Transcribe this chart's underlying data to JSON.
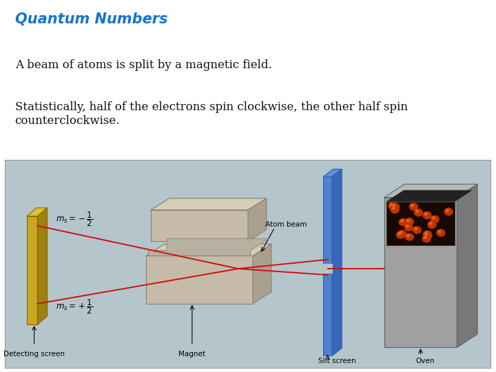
{
  "title": "Quantum Numbers",
  "title_color": "#1874CD",
  "title_fontsize": 15,
  "title_style": "italic",
  "title_weight": "bold",
  "body_text_1": "A beam of atoms is split by a magnetic field.",
  "body_text_2": "Statistically, half of the electrons spin clockwise, the other half spin\ncounterclockwise.",
  "body_fontsize": 12,
  "body_color": "#111111",
  "background_color": "#ffffff",
  "diagram_bg_color": "#b5c5cc",
  "diagram_border_color": "#888888"
}
